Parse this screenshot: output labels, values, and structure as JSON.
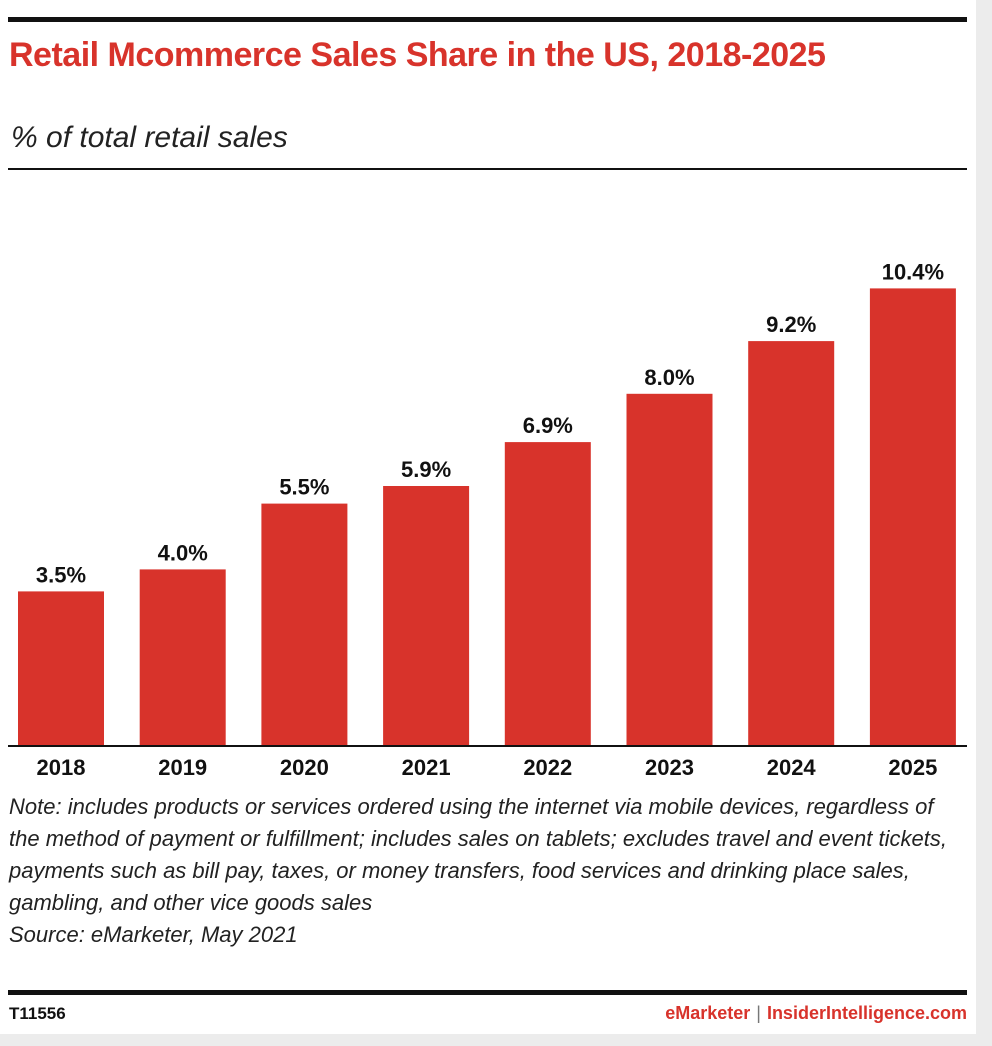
{
  "title": "Retail Mcommerce Sales Share in the US, 2018-2025",
  "subtitle": "% of total retail sales",
  "note": "Note: includes products or services ordered using the internet via mobile devices, regardless of the method of payment or fulfillment; includes sales on tablets; excludes travel and event tickets, payments such as bill pay, taxes, or money transfers, food services and drinking place sales, gambling, and other vice goods sales",
  "source": "Source: eMarketer, May 2021",
  "chart_id": "T11556",
  "brand": {
    "name": "eMarketer",
    "separator": "|",
    "partner": "InsiderIntelligence.com"
  },
  "colors": {
    "accent": "#d8332b",
    "bar": "#d8332b",
    "text": "#111111",
    "rule": "#111111"
  },
  "chart_data": {
    "type": "bar",
    "title": "Retail Mcommerce Sales Share in the US, 2018-2025",
    "subtitle": "% of total retail sales",
    "categories": [
      "2018",
      "2019",
      "2020",
      "2021",
      "2022",
      "2023",
      "2024",
      "2025"
    ],
    "values": [
      3.5,
      4.0,
      5.5,
      5.9,
      6.9,
      8.0,
      9.2,
      10.4
    ],
    "labels": [
      "3.5%",
      "4.0%",
      "5.5%",
      "5.9%",
      "6.9%",
      "8.0%",
      "9.2%",
      "10.4%"
    ],
    "xlabel": "",
    "ylabel": "",
    "ylim": [
      0,
      12
    ],
    "grid": false,
    "legend": "none"
  }
}
